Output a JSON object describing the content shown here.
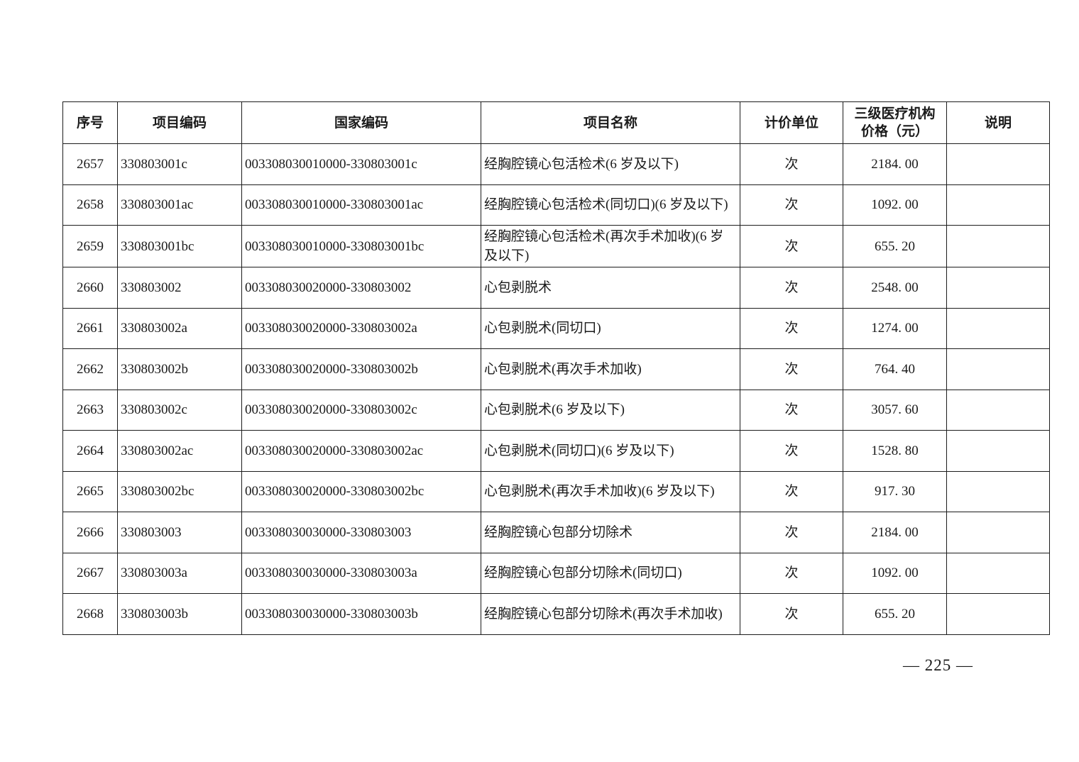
{
  "page": {
    "footer_page_number": "— 225 —"
  },
  "colors": {
    "background": "#ffffff",
    "text": "#1a1a1a",
    "border": "#1c1c1c"
  },
  "table": {
    "columns": [
      {
        "key": "seq",
        "label": "序号"
      },
      {
        "key": "item_code",
        "label": "项目编码"
      },
      {
        "key": "national_code",
        "label": "国家编码"
      },
      {
        "key": "item_name",
        "label": "项目名称"
      },
      {
        "key": "unit",
        "label": "计价单位"
      },
      {
        "key": "price",
        "label": "三级医疗机构\n价格（元）"
      },
      {
        "key": "note",
        "label": "说明"
      }
    ],
    "rows": [
      {
        "seq": "2657",
        "item_code": "330803001c",
        "national_code": "003308030010000-330803001c",
        "item_name": "经胸腔镜心包活检术(6 岁及以下)",
        "unit": "次",
        "price": "2184. 00",
        "note": ""
      },
      {
        "seq": "2658",
        "item_code": "330803001ac",
        "national_code": "003308030010000-330803001ac",
        "item_name": "经胸腔镜心包活检术(同切口)(6 岁及以下)",
        "unit": "次",
        "price": "1092. 00",
        "note": ""
      },
      {
        "seq": "2659",
        "item_code": "330803001bc",
        "national_code": "003308030010000-330803001bc",
        "item_name": "经胸腔镜心包活检术(再次手术加收)(6 岁及以下)",
        "unit": "次",
        "price": "655. 20",
        "note": ""
      },
      {
        "seq": "2660",
        "item_code": "330803002",
        "national_code": "003308030020000-330803002",
        "item_name": "心包剥脱术",
        "unit": "次",
        "price": "2548. 00",
        "note": ""
      },
      {
        "seq": "2661",
        "item_code": "330803002a",
        "national_code": "003308030020000-330803002a",
        "item_name": "心包剥脱术(同切口)",
        "unit": "次",
        "price": "1274. 00",
        "note": ""
      },
      {
        "seq": "2662",
        "item_code": "330803002b",
        "national_code": "003308030020000-330803002b",
        "item_name": "心包剥脱术(再次手术加收)",
        "unit": "次",
        "price": "764. 40",
        "note": ""
      },
      {
        "seq": "2663",
        "item_code": "330803002c",
        "national_code": "003308030020000-330803002c",
        "item_name": "心包剥脱术(6 岁及以下)",
        "unit": "次",
        "price": "3057. 60",
        "note": ""
      },
      {
        "seq": "2664",
        "item_code": "330803002ac",
        "national_code": "003308030020000-330803002ac",
        "item_name": "心包剥脱术(同切口)(6 岁及以下)",
        "unit": "次",
        "price": "1528. 80",
        "note": ""
      },
      {
        "seq": "2665",
        "item_code": "330803002bc",
        "national_code": "003308030020000-330803002bc",
        "item_name": "心包剥脱术(再次手术加收)(6 岁及以下)",
        "unit": "次",
        "price": "917. 30",
        "note": ""
      },
      {
        "seq": "2666",
        "item_code": "330803003",
        "national_code": "003308030030000-330803003",
        "item_name": "经胸腔镜心包部分切除术",
        "unit": "次",
        "price": "2184. 00",
        "note": ""
      },
      {
        "seq": "2667",
        "item_code": "330803003a",
        "national_code": "003308030030000-330803003a",
        "item_name": "经胸腔镜心包部分切除术(同切口)",
        "unit": "次",
        "price": "1092. 00",
        "note": ""
      },
      {
        "seq": "2668",
        "item_code": "330803003b",
        "national_code": "003308030030000-330803003b",
        "item_name": "经胸腔镜心包部分切除术(再次手术加收)",
        "unit": "次",
        "price": "655. 20",
        "note": ""
      }
    ]
  }
}
